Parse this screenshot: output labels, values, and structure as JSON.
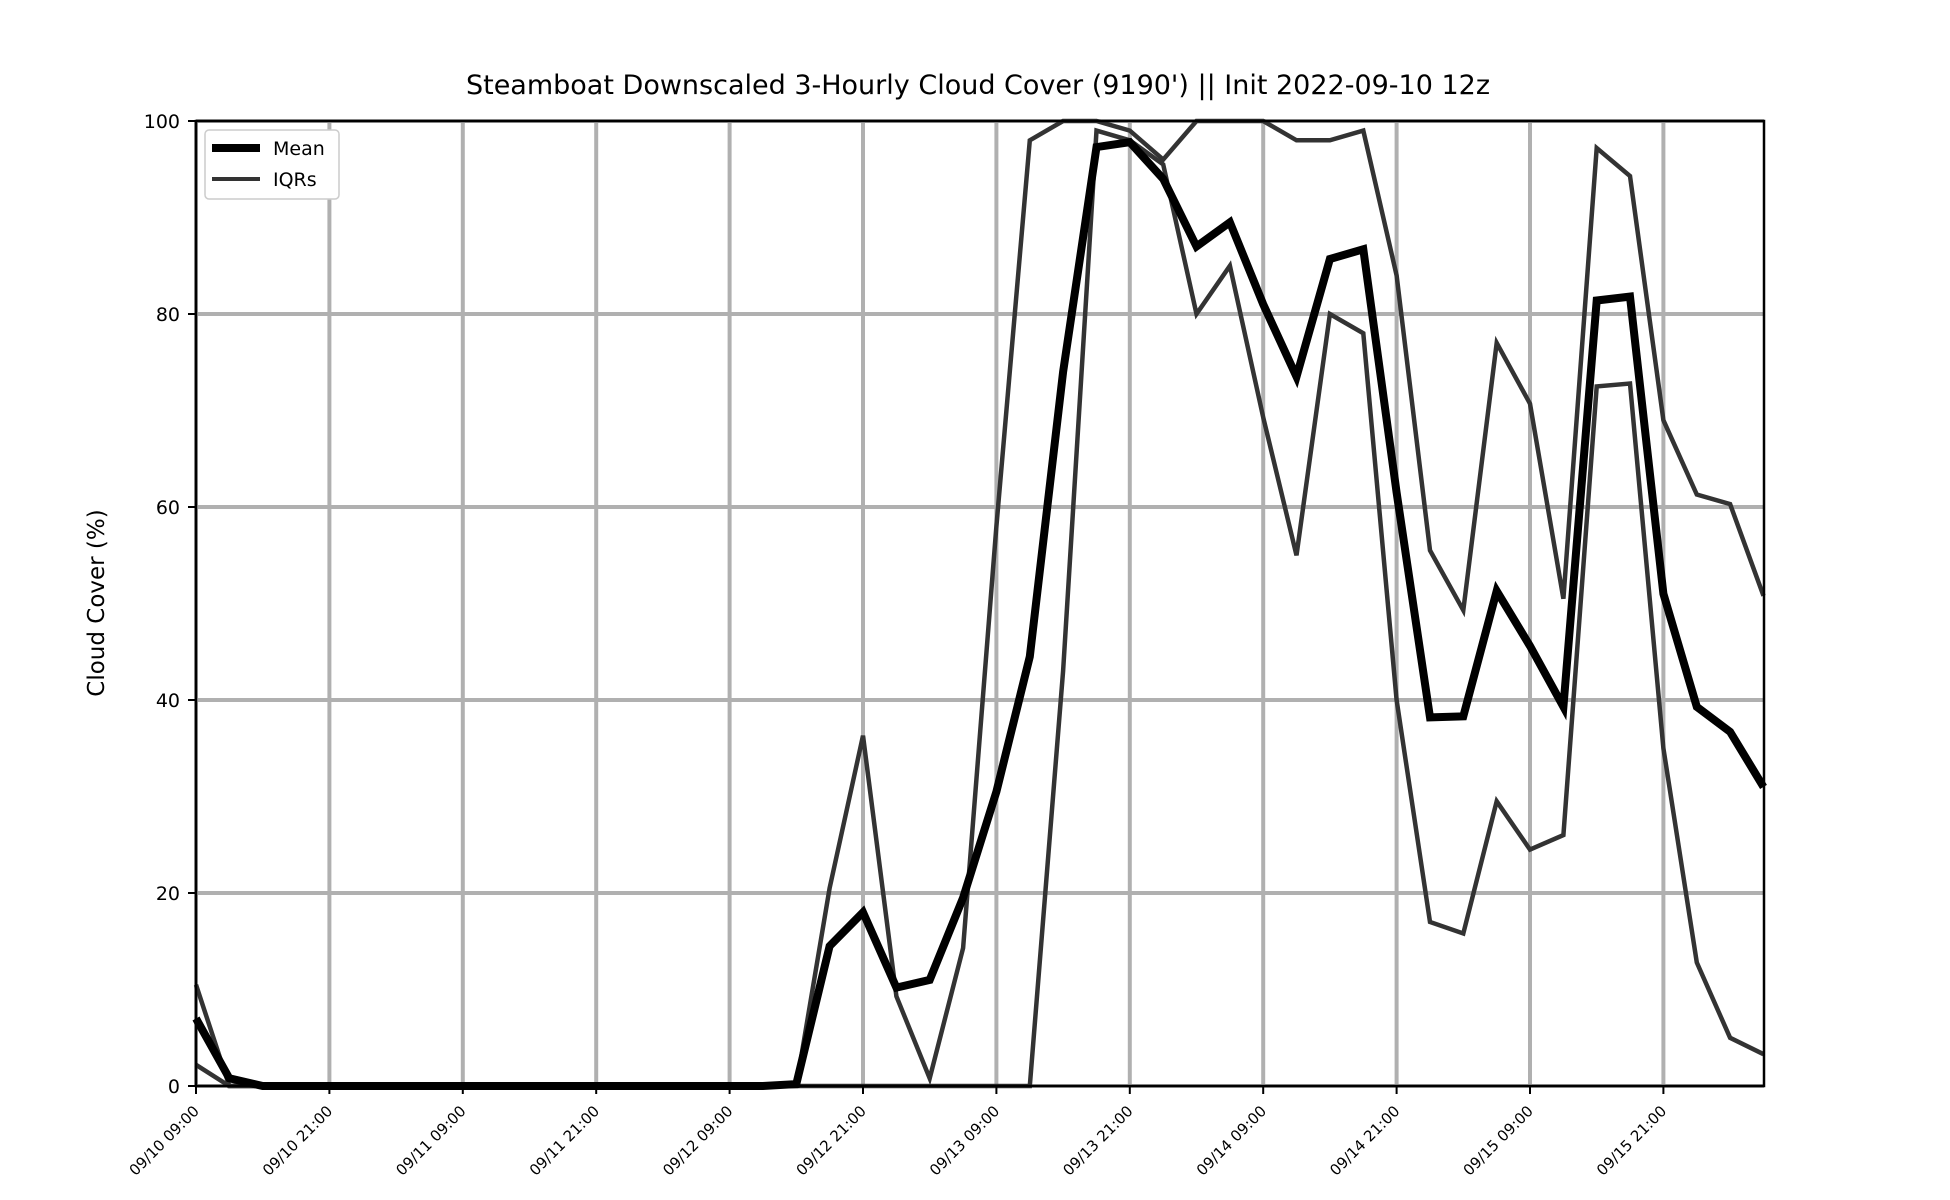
{
  "chart_data": {
    "type": "line",
    "title": "Steamboat Downscaled 3-Hourly Cloud Cover (9190') || Init 2022-09-10 12z",
    "xlabel": "",
    "ylabel": "Cloud Cover (%)",
    "ylim": [
      0,
      100
    ],
    "yticks": [
      0,
      20,
      40,
      60,
      80,
      100
    ],
    "xtick_labels": [
      "09/10 09:00",
      "09/10 21:00",
      "09/11 09:00",
      "09/11 21:00",
      "09/12 09:00",
      "09/12 21:00",
      "09/13 09:00",
      "09/13 21:00",
      "09/14 09:00",
      "09/14 21:00",
      "09/15 09:00",
      "09/15 21:00"
    ],
    "x": [
      "09/10 09:00",
      "09/10 12:00",
      "09/10 15:00",
      "09/10 18:00",
      "09/10 21:00",
      "09/11 00:00",
      "09/11 03:00",
      "09/11 06:00",
      "09/11 09:00",
      "09/11 12:00",
      "09/11 15:00",
      "09/11 18:00",
      "09/11 21:00",
      "09/12 00:00",
      "09/12 03:00",
      "09/12 06:00",
      "09/12 09:00",
      "09/12 12:00",
      "09/12 15:00",
      "09/12 18:00",
      "09/12 21:00",
      "09/13 00:00",
      "09/13 03:00",
      "09/13 06:00",
      "09/13 09:00",
      "09/13 12:00",
      "09/13 15:00",
      "09/13 18:00",
      "09/13 21:00",
      "09/14 00:00",
      "09/14 03:00",
      "09/14 06:00",
      "09/14 09:00",
      "09/14 12:00",
      "09/14 15:00",
      "09/14 18:00",
      "09/14 21:00",
      "09/15 00:00",
      "09/15 03:00",
      "09/15 06:00",
      "09/15 09:00",
      "09/15 12:00",
      "09/15 15:00",
      "09/15 18:00",
      "09/15 21:00",
      "09/16 00:00",
      "09/16 03:00",
      "09/16 06:00"
    ],
    "series": [
      {
        "name": "Mean",
        "style": "thick",
        "color": "#000000",
        "values": [
          7.0,
          0.8,
          0,
          0,
          0,
          0,
          0,
          0,
          0,
          0,
          0,
          0,
          0,
          0,
          0,
          0,
          0,
          0,
          0.2,
          14.5,
          18.0,
          10.2,
          11.0,
          19.5,
          30.5,
          44.5,
          74.0,
          97.3,
          97.8,
          94.0,
          87.0,
          89.5,
          81.0,
          73.5,
          85.7,
          86.7,
          61.5,
          38.2,
          38.3,
          51.3,
          45.6,
          39.3,
          81.4,
          81.8,
          51.0,
          39.3,
          36.7,
          31.0
        ]
      },
      {
        "name": "IQRs",
        "style": "thin",
        "color": "#333333",
        "values": [
          10.5,
          0,
          0,
          0,
          0,
          0,
          0,
          0,
          0,
          0,
          0,
          0,
          0,
          0,
          0,
          0,
          0,
          0,
          0,
          20.5,
          36.3,
          9.3,
          0.8,
          14.3,
          58.0,
          98.0,
          100,
          100,
          99.0,
          96.0,
          100,
          100,
          100,
          98.0,
          98.0,
          99.0,
          84.0,
          55.5,
          49.3,
          77.0,
          70.7,
          50.5,
          97.2,
          94.3,
          69.0,
          61.3,
          60.3,
          50.8
        ]
      },
      {
        "name": "",
        "style": "thin",
        "color": "#333333",
        "values": [
          2.2,
          0,
          0,
          0,
          0,
          0,
          0,
          0,
          0,
          0,
          0,
          0,
          0,
          0,
          0,
          0,
          0,
          0,
          0,
          0,
          0,
          0,
          0,
          0,
          0,
          0,
          43.0,
          99.0,
          98.0,
          95.5,
          80.0,
          85.0,
          69.3,
          55.0,
          80.0,
          78.0,
          40.0,
          17.0,
          15.8,
          29.5,
          24.5,
          26.0,
          72.5,
          72.8,
          35.0,
          12.8,
          5.0,
          3.3
        ]
      }
    ],
    "legend": {
      "location": "top-left",
      "entries": [
        "Mean",
        "IQRs"
      ]
    },
    "grid": true,
    "colors": {
      "grid": "#b0b0b0",
      "mean": "#000000",
      "iqr": "#333333"
    }
  }
}
